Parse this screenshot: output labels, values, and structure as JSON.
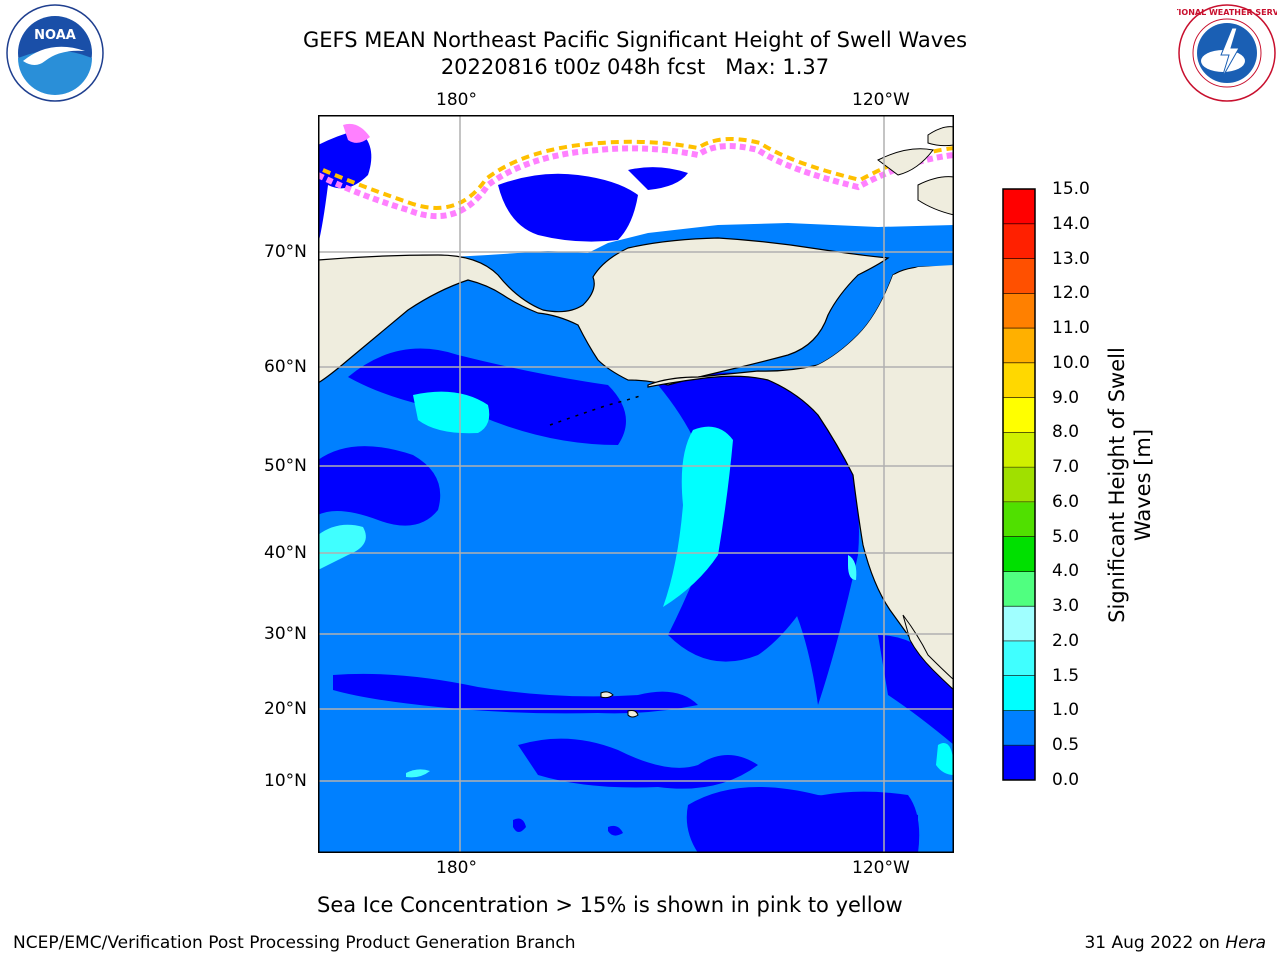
{
  "title": {
    "line1": "GEFS MEAN Northeast Pacific Significant Height of Swell Waves",
    "line2": "20220816 t00z 048h fcst   Max: 1.37"
  },
  "logos": {
    "noaa": "NOAA",
    "nws": "NATIONAL WEATHER SERVICE"
  },
  "map": {
    "lon_labels_top": [
      "180°",
      "120°W"
    ],
    "lon_labels_bottom": [
      "180°",
      "120°W"
    ],
    "lat_labels": [
      "70°N",
      "60°N",
      "50°N",
      "40°N",
      "30°N",
      "20°N",
      "10°N"
    ],
    "land_color": "#efedde",
    "grid_color": "#b0b0b0"
  },
  "colorbar": {
    "label": "Significant Height of Swell Waves [m]",
    "ticks": [
      "15.0",
      "14.0",
      "13.0",
      "12.0",
      "11.0",
      "10.0",
      "9.0",
      "8.0",
      "7.0",
      "6.0",
      "5.0",
      "4.0",
      "3.0",
      "2.0",
      "1.5",
      "1.0",
      "0.5",
      "0.0"
    ],
    "colors_bottom_to_top": [
      "#0000ff",
      "#0080ff",
      "#00ffff",
      "#40ffff",
      "#a0ffff",
      "#50ff80",
      "#00e000",
      "#50e000",
      "#a0e000",
      "#d0f000",
      "#ffff00",
      "#ffd800",
      "#ffb000",
      "#ff8000",
      "#ff5000",
      "#ff2000",
      "#ff0000"
    ]
  },
  "sea_ice_note": "Sea Ice Concentration > 15% is shown in pink to yellow",
  "footer": {
    "left": "NCEP/EMC/Verification Post Processing Product Generation Branch",
    "right_prefix": "31 Aug 2022 on ",
    "right_italic": "Hera"
  }
}
